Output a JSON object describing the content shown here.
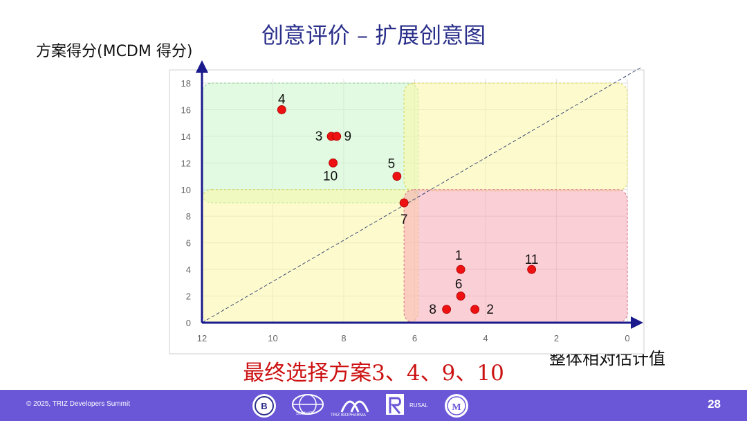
{
  "slide": {
    "title": "创意评价 – 扩展创意图",
    "y_axis_label": "方案得分(MCDM 得分)",
    "x_axis_label": "整体相对估计值",
    "conclusion": "最终选择方案3、4、9、10"
  },
  "footer": {
    "copyright": "© 2025, TRIZ Developers Summit",
    "page_number": "28",
    "logos": [
      {
        "name": "university-logo",
        "text": ""
      },
      {
        "name": "summit-logo",
        "text": "SUMMIT"
      },
      {
        "name": "triz-biopharma-logo",
        "text": "TRIZ BIOPHARMA"
      },
      {
        "name": "rusal-logo",
        "text": "RUSAL"
      },
      {
        "name": "triz-association-logo",
        "text": "TRIZ"
      }
    ]
  },
  "colors": {
    "axis": "#1a1a8c",
    "point": "#ee1111",
    "region_green": "#c8f5c8",
    "region_yellow": "#fbf7a6",
    "region_red": "#f8a7b5",
    "footer": "#6a57d8",
    "title": "#2a2f8a"
  },
  "chart_data": {
    "type": "scatter",
    "x_reversed": true,
    "xlim": [
      12,
      0
    ],
    "ylim": [
      0,
      18
    ],
    "x_ticks": [
      "12",
      "10",
      "8",
      "6",
      "4",
      "2",
      "0"
    ],
    "y_ticks": [
      "0",
      "2",
      "4",
      "6",
      "8",
      "10",
      "12",
      "14",
      "16",
      "18"
    ],
    "grid": true,
    "diagonal_reference_line": true,
    "points": [
      {
        "label": "1",
        "x": 4.7,
        "y": 4
      },
      {
        "label": "2",
        "x": 4.3,
        "y": 1
      },
      {
        "label": "3",
        "x": 8.35,
        "y": 14
      },
      {
        "label": "4",
        "x": 9.75,
        "y": 16
      },
      {
        "label": "5",
        "x": 6.5,
        "y": 11
      },
      {
        "label": "6",
        "x": 4.7,
        "y": 2
      },
      {
        "label": "7",
        "x": 6.3,
        "y": 9
      },
      {
        "label": "8",
        "x": 5.1,
        "y": 1
      },
      {
        "label": "9",
        "x": 8.2,
        "y": 14
      },
      {
        "label": "10",
        "x": 8.3,
        "y": 12
      },
      {
        "label": "11",
        "x": 2.7,
        "y": 4
      }
    ],
    "regions": [
      {
        "name": "top-left",
        "x_range": [
          12,
          5.9
        ],
        "y_range": [
          18,
          9
        ],
        "color": "green"
      },
      {
        "name": "top-right",
        "x_range": [
          6.3,
          0
        ],
        "y_range": [
          18,
          9.9
        ],
        "color": "yellow"
      },
      {
        "name": "bottom-left",
        "x_range": [
          12,
          5.9
        ],
        "y_range": [
          10,
          0
        ],
        "color": "yellow"
      },
      {
        "name": "bottom-right",
        "x_range": [
          6.3,
          0
        ],
        "y_range": [
          10,
          0
        ],
        "color": "red"
      }
    ]
  }
}
